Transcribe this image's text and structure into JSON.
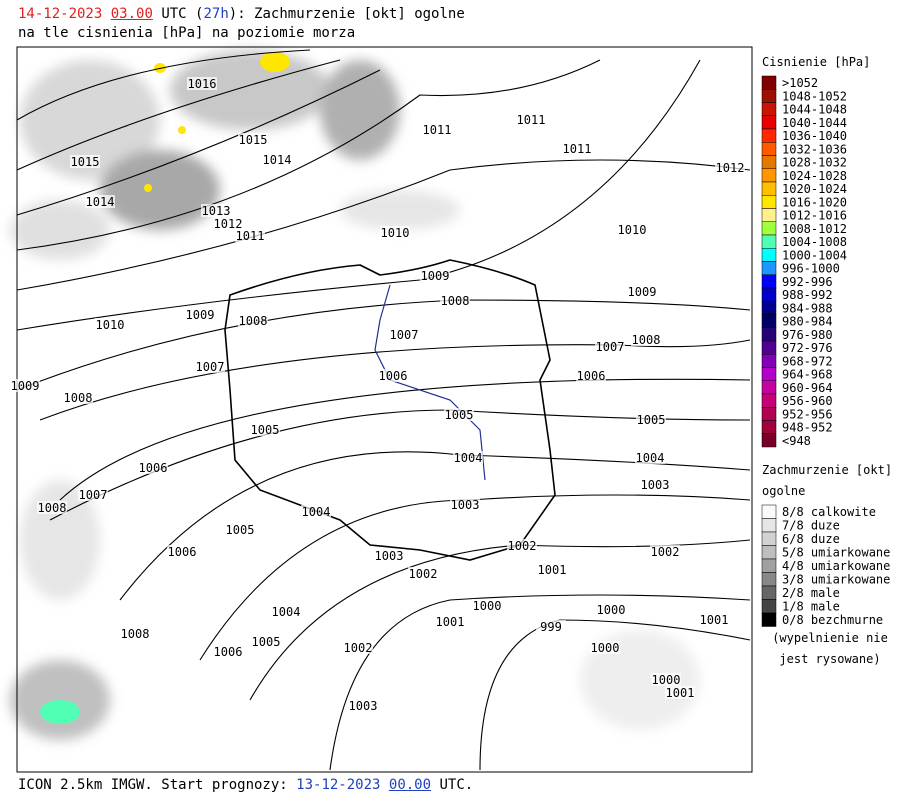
{
  "header": {
    "date": "14-12-2023",
    "hour": "03.00",
    "utc_open": " UTC (",
    "lead": "27h",
    "title_rest": "): Zachmurzenie [okt] ogolne",
    "line2": "na tle cisnienia [hPa] na poziomie morza"
  },
  "footer": {
    "model": "ICON 2.5km IMGW. Start prognozy: ",
    "start_date": "13-12-2023",
    "start_hour": "00.00",
    "utc": " UTC."
  },
  "legend_pressure": {
    "title": "Cisnienie [hPa]",
    "items": [
      {
        "label": ">1052",
        "color": "#800000"
      },
      {
        "label": "1048-1052",
        "color": "#a01000"
      },
      {
        "label": "1044-1048",
        "color": "#c81400"
      },
      {
        "label": "1040-1044",
        "color": "#e60000"
      },
      {
        "label": "1036-1040",
        "color": "#ff2800"
      },
      {
        "label": "1032-1036",
        "color": "#ff5a00"
      },
      {
        "label": "1028-1032",
        "color": "#e67800"
      },
      {
        "label": "1024-1028",
        "color": "#ff9600"
      },
      {
        "label": "1020-1024",
        "color": "#ffbe00"
      },
      {
        "label": "1016-1020",
        "color": "#ffe600"
      },
      {
        "label": "1012-1016",
        "color": "#fff08c"
      },
      {
        "label": "1008-1012",
        "color": "#a0ff3c"
      },
      {
        "label": "1004-1008",
        "color": "#50ffb4"
      },
      {
        "label": "1000-1004",
        "color": "#00ffff"
      },
      {
        "label": "996-1000",
        "color": "#1e96ff"
      },
      {
        "label": "992-996",
        "color": "#0000ff"
      },
      {
        "label": "988-992",
        "color": "#0000c8"
      },
      {
        "label": "984-988",
        "color": "#00008c"
      },
      {
        "label": "980-984",
        "color": "#000064"
      },
      {
        "label": "976-980",
        "color": "#280078"
      },
      {
        "label": "972-976",
        "color": "#500090"
      },
      {
        "label": "968-972",
        "color": "#8200b4"
      },
      {
        "label": "964-968",
        "color": "#b400c8"
      },
      {
        "label": "960-964",
        "color": "#c800a0"
      },
      {
        "label": "956-960",
        "color": "#c80078"
      },
      {
        "label": "952-956",
        "color": "#b40050"
      },
      {
        "label": "948-952",
        "color": "#a0003c"
      },
      {
        "label": "<948",
        "color": "#780028"
      }
    ]
  },
  "legend_cloud": {
    "title": "Zachmurzenie [okt]",
    "title2": "ogolne",
    "items": [
      {
        "label": "8/8 calkowite",
        "color": "#fafafa"
      },
      {
        "label": "7/8 duze",
        "color": "#e6e6e6"
      },
      {
        "label": "6/8 duze",
        "color": "#d2d2d2"
      },
      {
        "label": "5/8 umiarkowane",
        "color": "#bebebe"
      },
      {
        "label": "4/8 umiarkowane",
        "color": "#a0a0a0"
      },
      {
        "label": "3/8 umiarkowane",
        "color": "#888888"
      },
      {
        "label": "2/8 male",
        "color": "#666666"
      },
      {
        "label": "1/8 male",
        "color": "#444444"
      },
      {
        "label": "0/8 bezchmurne",
        "color": "#000000"
      }
    ],
    "note1": "(wypelnienie nie",
    "note2": "jest rysowane)"
  },
  "isobar_labels": [
    "1016",
    "1015",
    "1015",
    "1014",
    "1014",
    "1013",
    "1012",
    "1012",
    "1011",
    "1011",
    "1011",
    "1011",
    "1010",
    "1010",
    "1010",
    "1009",
    "1009",
    "1009",
    "1009",
    "1008",
    "1008",
    "1008",
    "1008",
    "1008",
    "1008",
    "1007",
    "1007",
    "1007",
    "1007",
    "1006",
    "1006",
    "1006",
    "1006",
    "1006",
    "1005",
    "1005",
    "1005",
    "1005",
    "1005",
    "1004",
    "1004",
    "1004",
    "1004",
    "1003",
    "1003",
    "1003",
    "1003",
    "1002",
    "1002",
    "1002",
    "1002",
    "1001",
    "1001",
    "1001",
    "1001",
    "1000",
    "1000",
    "1000",
    "1000",
    "999"
  ]
}
